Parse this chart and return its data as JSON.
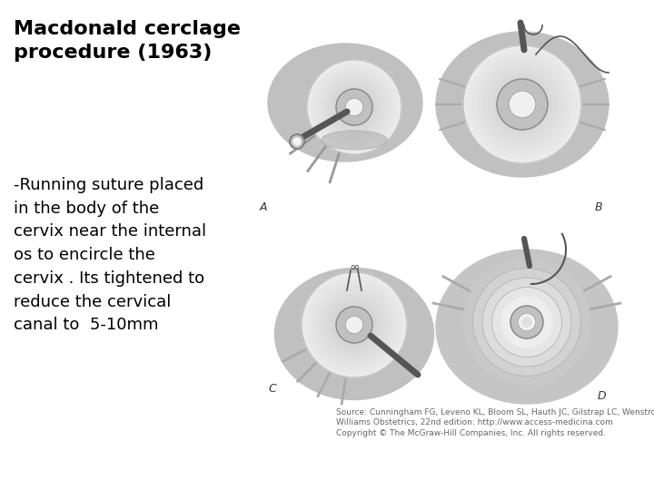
{
  "title_line1": "Macdonald cerclage",
  "title_line2": "procedure (1963)",
  "body_text_lines": [
    "-Running suture placed",
    "in the body of the",
    "cervix near the internal",
    "os to encircle the",
    "cervix . Its tightened to",
    "reduce the cervical",
    "canal to  5-10mm"
  ],
  "source_line1": "Source: Cunningham FG, Leveno KL, Bloom SL, Hauth JC, Gilstrap LC, Wenstrom KD:",
  "source_line2": "Williams Obstetrics, 22nd edition: http://www.access-medicina.com",
  "source_line3": "Copyright © The McGraw-Hill Companies, Inc. All rights reserved.",
  "label_a": "A",
  "label_b": "B",
  "label_c": "C",
  "label_d": "D",
  "bg_color": "#ffffff",
  "title_color": "#000000",
  "body_color": "#000000",
  "source_color": "#666666",
  "title_fontsize": 16,
  "body_fontsize": 13,
  "source_fontsize": 6.5,
  "label_fontsize": 9
}
